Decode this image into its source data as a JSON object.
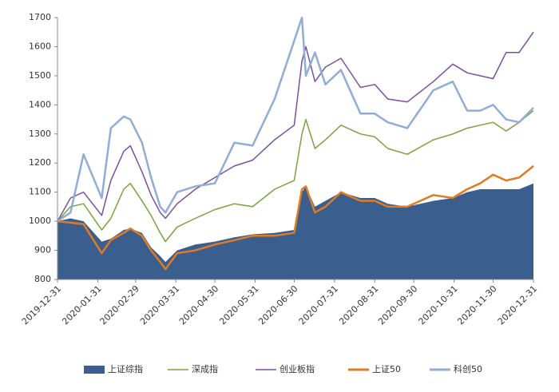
{
  "chart_data": {
    "type": "line",
    "x": [
      "2019-12-31",
      "2020-01-10",
      "2020-01-20",
      "2020-02-03",
      "2020-02-10",
      "2020-02-20",
      "2020-02-25",
      "2020-03-05",
      "2020-03-12",
      "2020-03-19",
      "2020-03-23",
      "2020-04-01",
      "2020-04-15",
      "2020-04-30",
      "2020-05-15",
      "2020-05-29",
      "2020-06-15",
      "2020-06-30",
      "2020-07-06",
      "2020-07-09",
      "2020-07-16",
      "2020-07-24",
      "2020-08-05",
      "2020-08-20",
      "2020-08-31",
      "2020-09-10",
      "2020-09-25",
      "2020-10-15",
      "2020-10-30",
      "2020-11-10",
      "2020-11-20",
      "2020-11-30",
      "2020-12-10",
      "2020-12-20",
      "2020-12-31"
    ],
    "series": [
      {
        "name": "上证综指",
        "color": "#3a5f8f",
        "style": "area",
        "values": [
          1000,
          1010,
          1000,
          930,
          940,
          970,
          975,
          960,
          910,
          880,
          860,
          900,
          920,
          930,
          945,
          955,
          960,
          970,
          1100,
          1120,
          1050,
          1070,
          1100,
          1080,
          1080,
          1060,
          1050,
          1070,
          1080,
          1100,
          1110,
          1110,
          1110,
          1110,
          1130
        ]
      },
      {
        "name": "深成指",
        "color": "#7aa33e",
        "style": "line",
        "values": [
          1000,
          1050,
          1060,
          970,
          1010,
          1110,
          1130,
          1070,
          1020,
          960,
          930,
          980,
          1010,
          1040,
          1060,
          1050,
          1110,
          1140,
          1300,
          1350,
          1250,
          1280,
          1330,
          1300,
          1290,
          1250,
          1230,
          1280,
          1300,
          1320,
          1330,
          1340,
          1310,
          1340,
          1380
        ]
      },
      {
        "name": "创业板指",
        "color": "#7b4fa0",
        "style": "line",
        "values": [
          1000,
          1080,
          1100,
          1020,
          1140,
          1240,
          1260,
          1170,
          1090,
          1030,
          1010,
          1060,
          1110,
          1150,
          1190,
          1210,
          1280,
          1330,
          1550,
          1600,
          1480,
          1530,
          1560,
          1460,
          1470,
          1420,
          1410,
          1480,
          1540,
          1510,
          1500,
          1490,
          1580,
          1580,
          1650
        ]
      },
      {
        "name": "上证50",
        "color": "#e07b24",
        "style": "line",
        "values": [
          1000,
          995,
          990,
          890,
          935,
          960,
          975,
          950,
          900,
          860,
          835,
          890,
          900,
          920,
          935,
          950,
          950,
          960,
          1110,
          1120,
          1030,
          1050,
          1100,
          1070,
          1070,
          1050,
          1050,
          1090,
          1080,
          1110,
          1130,
          1160,
          1140,
          1150,
          1190
        ]
      },
      {
        "name": "科创50",
        "color": "#8fadd6",
        "style": "line",
        "values": [
          1000,
          1030,
          1230,
          1080,
          1320,
          1360,
          1350,
          1270,
          1150,
          1050,
          1030,
          1100,
          1120,
          1130,
          1270,
          1260,
          1420,
          1620,
          1700,
          1500,
          1580,
          1470,
          1520,
          1370,
          1370,
          1340,
          1320,
          1450,
          1480,
          1380,
          1380,
          1400,
          1350,
          1340,
          1390
        ]
      }
    ],
    "xlim": [
      "2019-12-31",
      "2020-12-31"
    ],
    "xticks": [
      "2019-12-31",
      "2020-01-31",
      "2020-02-29",
      "2020-03-31",
      "2020-04-30",
      "2020-05-31",
      "2020-06-30",
      "2020-07-31",
      "2020-08-31",
      "2020-09-30",
      "2020-10-31",
      "2020-11-30",
      "2020-12-31"
    ],
    "ylim": [
      800,
      1700
    ],
    "yticks": [
      800,
      900,
      1000,
      1100,
      1200,
      1300,
      1400,
      1500,
      1600,
      1700
    ],
    "grid": false,
    "legend": "bottom"
  }
}
